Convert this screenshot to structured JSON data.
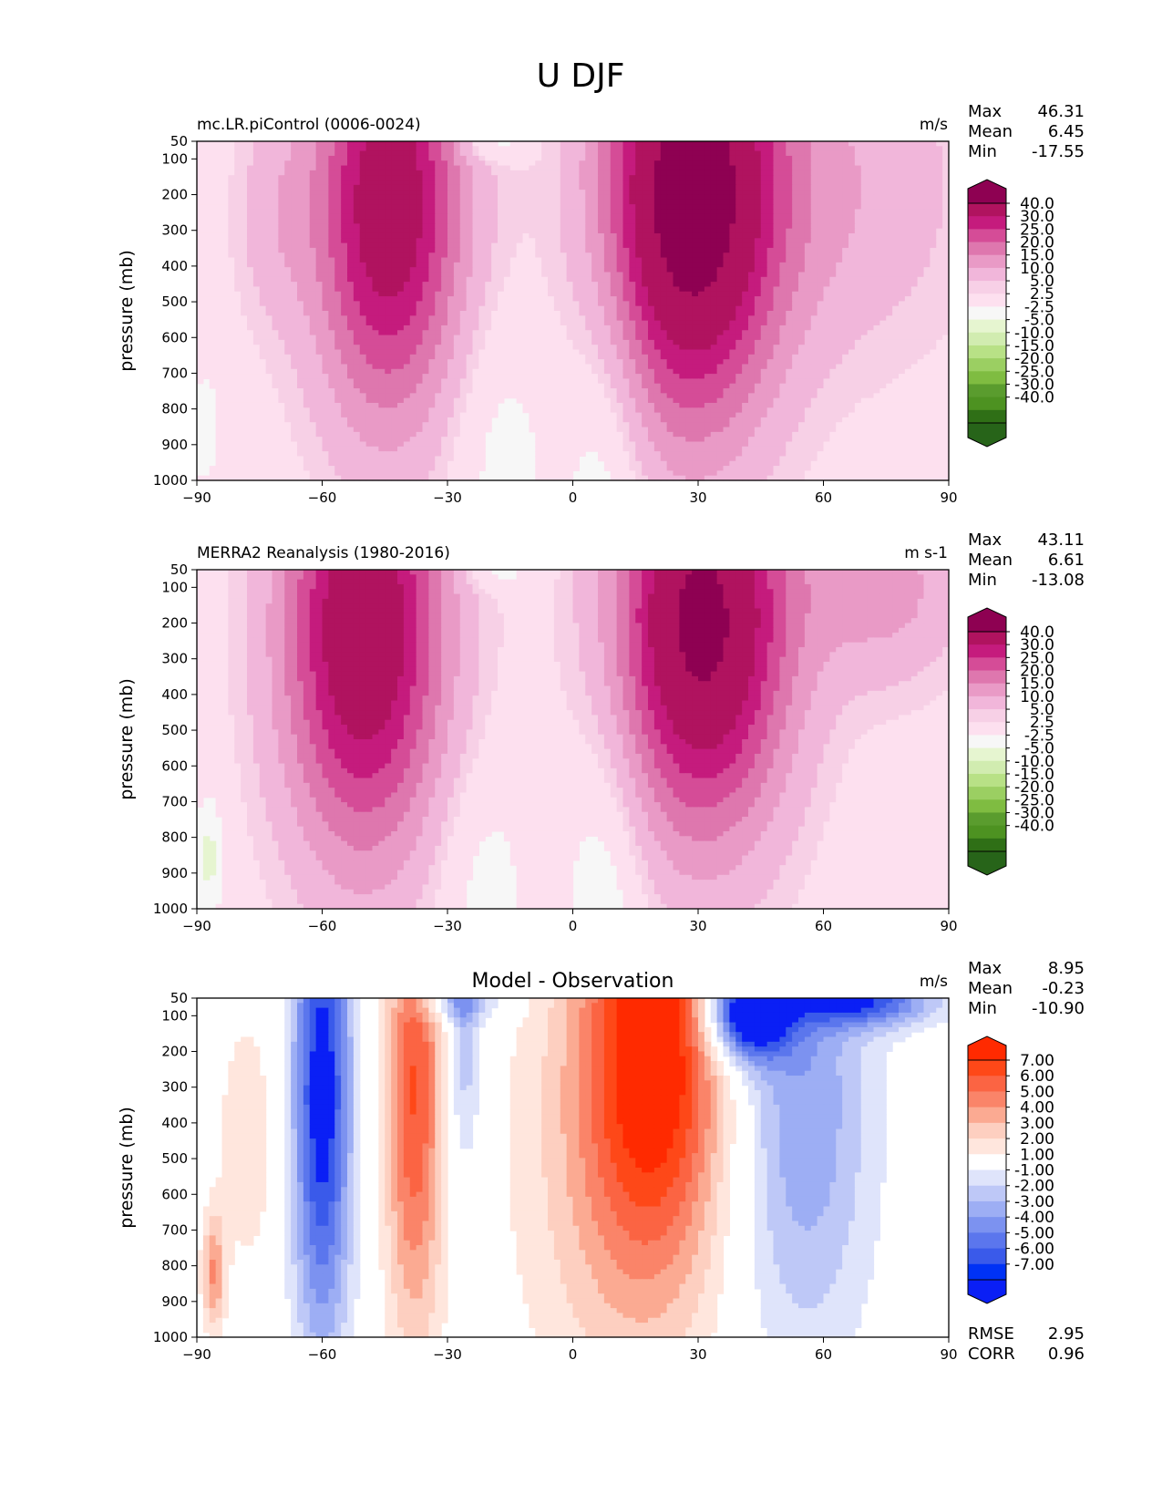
{
  "figure_title": "U DJF",
  "colors": {
    "background_field": "#f7f7f7",
    "panel_background": "#ffffff"
  },
  "chart_data": [
    {
      "type": "contourf",
      "panel_title_left": "mc.LR.piControl (0006-0024)",
      "panel_title_center": "",
      "units": "m/s",
      "xlabel": "",
      "ylabel": "pressure (mb)",
      "xlim": [
        -90,
        90
      ],
      "ylim": [
        1000,
        50
      ],
      "xticks": [
        -90,
        -60,
        -30,
        0,
        30,
        60,
        90
      ],
      "yticks": [
        50,
        100,
        200,
        300,
        400,
        500,
        600,
        700,
        800,
        900,
        1000
      ],
      "stats": [
        {
          "label": "Max",
          "value": "46.31"
        },
        {
          "label": "Mean",
          "value": "6.45"
        },
        {
          "label": "Min",
          "value": "-17.55"
        }
      ],
      "colorbar": {
        "labels": [
          "40.0",
          "30.0",
          "25.0",
          "20.0",
          "15.0",
          "10.0",
          "5.0",
          "2.5",
          "-2.5",
          "-5.0",
          "-10.0",
          "-15.0",
          "-20.0",
          "-25.0",
          "-30.0",
          "-40.0"
        ],
        "colors": [
          "#8e0152",
          "#b0135f",
          "#c51b7d",
          "#d54c97",
          "#de77ae",
          "#e99ac6",
          "#f1b6da",
          "#f7d0e6",
          "#fde0ef",
          "#f7f7f7",
          "#e6f5d0",
          "#d1ecb0",
          "#b8e186",
          "#9bcf62",
          "#7fbc41",
          "#5a9c2e",
          "#4d9221",
          "#2f6f16",
          "#276419"
        ]
      },
      "blobs": [
        {
          "lat": -44,
          "p": 230,
          "sigma_lat": 13,
          "sigma_p": 430,
          "amp": 36
        },
        {
          "lat": 28,
          "p": 210,
          "sigma_lat": 15,
          "sigma_p": 450,
          "amp": 46
        },
        {
          "lat": -72,
          "p": 260,
          "sigma_lat": 7,
          "sigma_p": 220,
          "amp": 6
        },
        {
          "lat": 65,
          "p": 180,
          "sigma_lat": 22,
          "sigma_p": 350,
          "amp": 9
        },
        {
          "lat": -20,
          "p": 55,
          "sigma_lat": 6,
          "sigma_p": 40,
          "amp": -8
        },
        {
          "lat": -18,
          "p": 900,
          "sigma_lat": 9,
          "sigma_p": 280,
          "amp": -5
        },
        {
          "lat": 8,
          "p": 930,
          "sigma_lat": 7,
          "sigma_p": 380,
          "amp": -7
        },
        {
          "lat": -88,
          "p": 850,
          "sigma_lat": 3,
          "sigma_p": 150,
          "amp": -4
        }
      ]
    },
    {
      "type": "contourf",
      "panel_title_left": "MERRA2 Reanalysis (1980-2016)",
      "panel_title_center": "",
      "units": "m s-1",
      "xlabel": "",
      "ylabel": "pressure (mb)",
      "xlim": [
        -90,
        90
      ],
      "ylim": [
        1000,
        50
      ],
      "xticks": [
        -90,
        -60,
        -30,
        0,
        30,
        60,
        90
      ],
      "yticks": [
        50,
        100,
        200,
        300,
        400,
        500,
        600,
        700,
        800,
        900,
        1000
      ],
      "stats": [
        {
          "label": "Max",
          "value": "43.11"
        },
        {
          "label": "Mean",
          "value": "6.61"
        },
        {
          "label": "Min",
          "value": "-13.08"
        }
      ],
      "colorbar": {
        "labels": [
          "40.0",
          "30.0",
          "25.0",
          "20.0",
          "15.0",
          "10.0",
          "5.0",
          "2.5",
          "-2.5",
          "-5.0",
          "-10.0",
          "-15.0",
          "-20.0",
          "-25.0",
          "-30.0",
          "-40.0"
        ],
        "colors": [
          "#8e0152",
          "#b0135f",
          "#c51b7d",
          "#d54c97",
          "#de77ae",
          "#e99ac6",
          "#f1b6da",
          "#f7d0e6",
          "#fde0ef",
          "#f7f7f7",
          "#e6f5d0",
          "#d1ecb0",
          "#b8e186",
          "#9bcf62",
          "#7fbc41",
          "#5a9c2e",
          "#4d9221",
          "#2f6f16",
          "#276419"
        ]
      },
      "blobs": [
        {
          "lat": -50,
          "p": 220,
          "sigma_lat": 14,
          "sigma_p": 450,
          "amp": 38
        },
        {
          "lat": 31,
          "p": 200,
          "sigma_lat": 15,
          "sigma_p": 420,
          "amp": 43
        },
        {
          "lat": 75,
          "p": 100,
          "sigma_lat": 14,
          "sigma_p": 200,
          "amp": 12
        },
        {
          "lat": -18,
          "p": 55,
          "sigma_lat": 6,
          "sigma_p": 40,
          "amp": -6
        },
        {
          "lat": -22,
          "p": 920,
          "sigma_lat": 8,
          "sigma_p": 260,
          "amp": -5
        },
        {
          "lat": 8,
          "p": 920,
          "sigma_lat": 7,
          "sigma_p": 380,
          "amp": -7
        },
        {
          "lat": -87,
          "p": 850,
          "sigma_lat": 3,
          "sigma_p": 150,
          "amp": -6
        }
      ]
    },
    {
      "type": "contourf",
      "panel_title_left": "",
      "panel_title_center": "Model - Observation",
      "units": "m/s",
      "xlabel": "",
      "ylabel": "pressure (mb)",
      "xlim": [
        -90,
        90
      ],
      "ylim": [
        1000,
        50
      ],
      "xticks": [
        -90,
        -60,
        -30,
        0,
        30,
        60,
        90
      ],
      "yticks": [
        50,
        100,
        200,
        300,
        400,
        500,
        600,
        700,
        800,
        900,
        1000
      ],
      "stats": [
        {
          "label": "Max",
          "value": "8.95"
        },
        {
          "label": "Mean",
          "value": "-0.23"
        },
        {
          "label": "Min",
          "value": "-10.90"
        }
      ],
      "footer_stats": [
        {
          "label": "RMSE",
          "value": "2.95"
        },
        {
          "label": "CORR",
          "value": "0.96"
        }
      ],
      "colorbar": {
        "labels": [
          "7.00",
          "6.00",
          "5.00",
          "4.00",
          "3.00",
          "2.00",
          "1.00",
          "-1.00",
          "-2.00",
          "-3.00",
          "-4.00",
          "-5.00",
          "-6.00",
          "-7.00"
        ],
        "colors": [
          "#ff2a00",
          "#fe4818",
          "#fb6443",
          "#fa8469",
          "#fbaa92",
          "#fdcfc0",
          "#ffe6dd",
          "#ffffff",
          "#dfe4fb",
          "#bec8f7",
          "#9daef4",
          "#7c92f0",
          "#5b76ed",
          "#3a5aea",
          "#0032f5",
          "#0a1ff5"
        ]
      },
      "blobs": [
        {
          "lat": -60,
          "p": 320,
          "sigma_lat": 5,
          "sigma_p": 500,
          "amp": -8
        },
        {
          "lat": -38,
          "p": 300,
          "sigma_lat": 5,
          "sigma_p": 500,
          "amp": 6
        },
        {
          "lat": -26,
          "p": 200,
          "sigma_lat": 3,
          "sigma_p": 250,
          "amp": -3
        },
        {
          "lat": 20,
          "p": 150,
          "sigma_lat": 12,
          "sigma_p": 450,
          "amp": 7
        },
        {
          "lat": 10,
          "p": 500,
          "sigma_lat": 18,
          "sigma_p": 550,
          "amp": 2.5
        },
        {
          "lat": 42,
          "p": 90,
          "sigma_lat": 7,
          "sigma_p": 90,
          "amp": -10
        },
        {
          "lat": 55,
          "p": 350,
          "sigma_lat": 12,
          "sigma_p": 500,
          "amp": -4
        },
        {
          "lat": -78,
          "p": 450,
          "sigma_lat": 5,
          "sigma_p": 250,
          "amp": 2
        },
        {
          "lat": -86,
          "p": 820,
          "sigma_lat": 2,
          "sigma_p": 120,
          "amp": 4
        },
        {
          "lat": -28,
          "p": 60,
          "sigma_lat": 8,
          "sigma_p": 40,
          "amp": -3
        },
        {
          "lat": 70,
          "p": 60,
          "sigma_lat": 12,
          "sigma_p": 50,
          "amp": -6
        }
      ]
    }
  ]
}
